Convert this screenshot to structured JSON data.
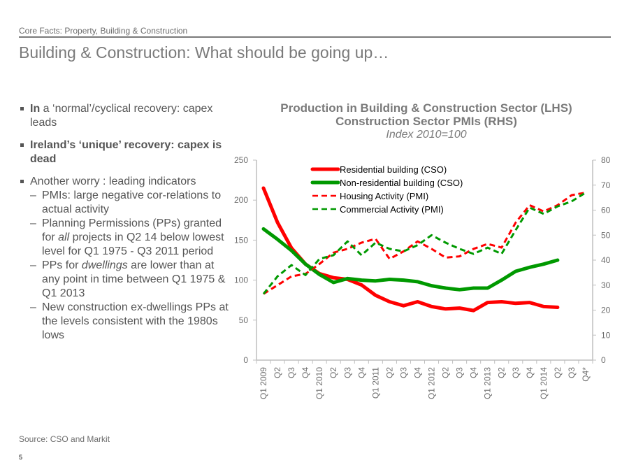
{
  "header": {
    "section": "Core Facts: Property, Building & Construction",
    "title": "Building & Construction: What should be going up…"
  },
  "bullets": [
    {
      "type": "main",
      "parts": [
        {
          "text": "In",
          "bold": true
        },
        {
          "text": " a ‘normal’/cyclical recovery: capex leads"
        }
      ]
    },
    {
      "type": "main",
      "bold": true,
      "parts": [
        {
          "text": "Ireland’s ‘unique’ recovery: capex is dead",
          "bold": true
        }
      ]
    },
    {
      "type": "main",
      "parts": [
        {
          "text": "Another worry : leading indicators"
        }
      ]
    },
    {
      "type": "sub",
      "parts": [
        {
          "text": "PMIs: large negative cor-relations to actual activity"
        }
      ]
    },
    {
      "type": "sub",
      "parts": [
        {
          "text": "Planning Permissions (PPs) granted for "
        },
        {
          "text": "all",
          "italic": true
        },
        {
          "text": " projects in Q2 14 below lowest level for Q1 1975 - Q3 2011 period"
        }
      ]
    },
    {
      "type": "sub",
      "parts": [
        {
          "text": "PPs for "
        },
        {
          "text": "dwellings",
          "italic": true
        },
        {
          "text": " are lower than at any point in time between Q1 1975 & Q1 2013"
        }
      ]
    },
    {
      "type": "sub",
      "parts": [
        {
          "text": "New construction ex-dwellings PPs at the levels consistent with the 1980s lows"
        }
      ]
    }
  ],
  "footer": {
    "source": "Source: CSO and Markit",
    "page_number": "5"
  },
  "chart_data": {
    "type": "line",
    "title": "Production in Building & Construction Sector (LHS)",
    "title2": "Construction Sector PMIs (RHS)",
    "subtitle": "Index 2010=100",
    "categories": [
      "Q1 2009",
      "Q2",
      "Q3",
      "Q4",
      "Q1 2010",
      "Q2",
      "Q3",
      "Q4",
      "Q1 2011",
      "Q2",
      "Q3",
      "Q4",
      "Q1 2012",
      "Q2",
      "Q3",
      "Q4",
      "Q1 2013",
      "Q2",
      "Q3",
      "Q4",
      "Q1 2014",
      "Q2",
      "Q3",
      "Q4*"
    ],
    "y_left": {
      "range": [
        0,
        250
      ],
      "ticks": [
        0,
        50,
        100,
        150,
        200,
        250
      ]
    },
    "y_right": {
      "range": [
        0,
        80
      ],
      "ticks": [
        0,
        10,
        20,
        30,
        40,
        50,
        60,
        70,
        80
      ]
    },
    "grid": false,
    "legend_position": "top-center",
    "series": [
      {
        "name": "Residential building (CSO)",
        "axis": "left",
        "style": "solid",
        "color": "#ff0000",
        "values": [
          215,
          172,
          140,
          120,
          108,
          103,
          101,
          94,
          81,
          73,
          68,
          73,
          67,
          64,
          65,
          62,
          72,
          73,
          71,
          72,
          67,
          66,
          null,
          null
        ]
      },
      {
        "name": "Non-residential building (CSO)",
        "axis": "left",
        "style": "solid",
        "color": "#009900",
        "values": [
          164,
          151,
          137,
          120,
          107,
          97,
          102,
          100,
          99,
          101,
          100,
          98,
          93,
          90,
          88,
          90,
          90,
          100,
          111,
          116,
          120,
          125,
          null,
          null
        ]
      },
      {
        "name": "Housing Activity (PMI)",
        "axis": "right",
        "style": "dashed",
        "color": "#ff0000",
        "values": [
          26.5,
          30,
          33.5,
          34.5,
          38.5,
          43,
          44.5,
          47,
          48.5,
          40.5,
          43.5,
          47.5,
          44.5,
          41,
          41.5,
          44.5,
          46.5,
          45,
          55,
          62,
          59.5,
          62,
          66,
          67
        ]
      },
      {
        "name": "Commercial Activity (PMI)",
        "axis": "right",
        "style": "dashed",
        "color": "#009900",
        "values": [
          26.5,
          33.5,
          38,
          34,
          40.5,
          42,
          47.5,
          42,
          47,
          44.5,
          43.5,
          46,
          50,
          47,
          44.5,
          42.5,
          45,
          42.5,
          52,
          61,
          58.5,
          61.5,
          63.5,
          67
        ]
      }
    ]
  }
}
